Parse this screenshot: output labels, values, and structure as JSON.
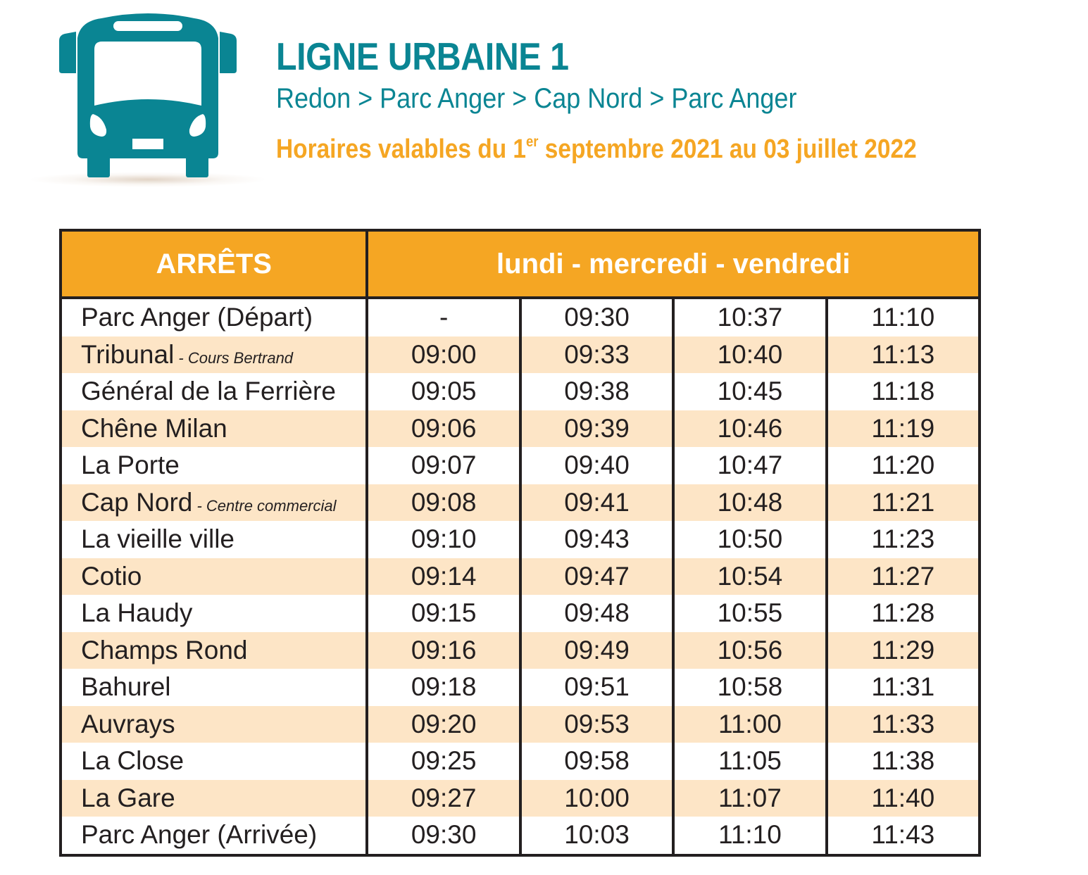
{
  "header": {
    "icon": "bus-icon",
    "title": "LIGNE URBAINE 1",
    "route": "Redon > Parc Anger > Cap Nord > Parc Anger",
    "validity_prefix": "Horaires valables du 1",
    "validity_sup": "er",
    "validity_suffix": " septembre 2021 au 03 juillet 2022"
  },
  "colors": {
    "teal": "#0a8593",
    "orange": "#f5a623",
    "row_alt": "#fde5c6",
    "border": "#231f20"
  },
  "table": {
    "stops_header": "ARRÊTS",
    "days_header": "lundi - mercredi - vendredi",
    "rows": [
      {
        "stop": "Parc Anger (Départ)",
        "note": "",
        "times": [
          "-",
          "09:30",
          "10:37",
          "11:10"
        ]
      },
      {
        "stop": "Tribunal",
        "note": " - Cours Bertrand",
        "times": [
          "09:00",
          "09:33",
          "10:40",
          "11:13"
        ]
      },
      {
        "stop": "Général de la Ferrière",
        "note": "",
        "times": [
          "09:05",
          "09:38",
          "10:45",
          "11:18"
        ]
      },
      {
        "stop": "Chêne Milan",
        "note": "",
        "times": [
          "09:06",
          "09:39",
          "10:46",
          "11:19"
        ]
      },
      {
        "stop": "La Porte",
        "note": "",
        "times": [
          "09:07",
          "09:40",
          "10:47",
          "11:20"
        ]
      },
      {
        "stop": "Cap Nord",
        "note": " - Centre commercial",
        "times": [
          "09:08",
          "09:41",
          "10:48",
          "11:21"
        ]
      },
      {
        "stop": "La vieille ville",
        "note": "",
        "times": [
          "09:10",
          "09:43",
          "10:50",
          "11:23"
        ]
      },
      {
        "stop": "Cotio",
        "note": "",
        "times": [
          "09:14",
          "09:47",
          "10:54",
          "11:27"
        ]
      },
      {
        "stop": "La Haudy",
        "note": "",
        "times": [
          "09:15",
          "09:48",
          "10:55",
          "11:28"
        ]
      },
      {
        "stop": "Champs Rond",
        "note": "",
        "times": [
          "09:16",
          "09:49",
          "10:56",
          "11:29"
        ]
      },
      {
        "stop": "Bahurel",
        "note": "",
        "times": [
          "09:18",
          "09:51",
          "10:58",
          "11:31"
        ]
      },
      {
        "stop": "Auvrays",
        "note": "",
        "times": [
          "09:20",
          "09:53",
          "11:00",
          "11:33"
        ]
      },
      {
        "stop": "La Close",
        "note": "",
        "times": [
          "09:25",
          "09:58",
          "11:05",
          "11:38"
        ]
      },
      {
        "stop": "La Gare",
        "note": "",
        "times": [
          "09:27",
          "10:00",
          "11:07",
          "11:40"
        ]
      },
      {
        "stop": "Parc Anger (Arrivée)",
        "note": "",
        "times": [
          "09:30",
          "10:03",
          "11:10",
          "11:43"
        ]
      }
    ]
  }
}
